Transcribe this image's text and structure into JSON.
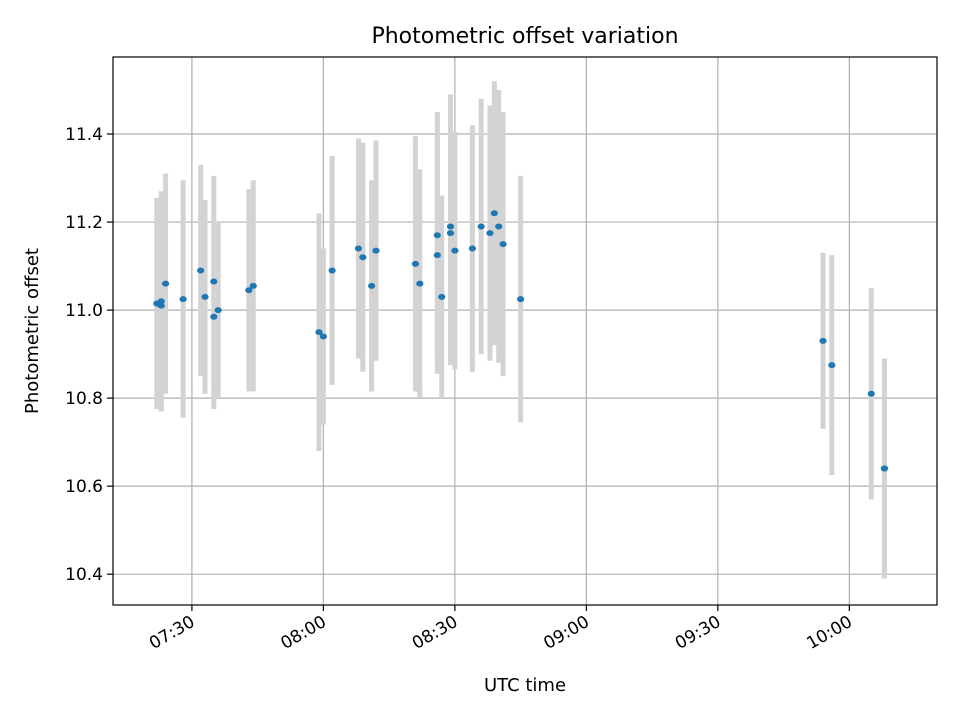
{
  "chart_data": {
    "type": "scatter",
    "title": "Photometric offset variation",
    "xlabel": "UTC time",
    "ylabel": "Photometric offset",
    "xlim": [
      "07:12",
      "10:20"
    ],
    "ylim": [
      10.33,
      11.575
    ],
    "xticks": [
      "07:30",
      "08:00",
      "08:30",
      "09:00",
      "09:30",
      "10:00"
    ],
    "yticks": [
      "10.4",
      "10.6",
      "10.8",
      "11.0",
      "11.2",
      "11.4"
    ],
    "grid": true,
    "colors": {
      "marker": "#1f77b4",
      "errorbar": "#d3d3d3",
      "grid": "#b0b0b0"
    },
    "points": [
      {
        "x": "07:22",
        "y": 11.015,
        "err": 0.24
      },
      {
        "x": "07:23",
        "y": 11.02,
        "err": 0.25
      },
      {
        "x": "07:23",
        "y": 11.01,
        "err": 0.24
      },
      {
        "x": "07:24",
        "y": 11.06,
        "err": 0.25
      },
      {
        "x": "07:28",
        "y": 11.025,
        "err": 0.27
      },
      {
        "x": "07:32",
        "y": 11.09,
        "err": 0.24
      },
      {
        "x": "07:33",
        "y": 11.03,
        "err": 0.22
      },
      {
        "x": "07:35",
        "y": 11.065,
        "err": 0.24
      },
      {
        "x": "07:35",
        "y": 10.985,
        "err": 0.21
      },
      {
        "x": "07:36",
        "y": 11.0,
        "err": 0.2
      },
      {
        "x": "07:43",
        "y": 11.045,
        "err": 0.23
      },
      {
        "x": "07:44",
        "y": 11.055,
        "err": 0.24
      },
      {
        "x": "07:59",
        "y": 10.95,
        "err": 0.27
      },
      {
        "x": "08:00",
        "y": 10.94,
        "err": 0.2
      },
      {
        "x": "08:02",
        "y": 11.09,
        "err": 0.26
      },
      {
        "x": "08:08",
        "y": 11.14,
        "err": 0.25
      },
      {
        "x": "08:09",
        "y": 11.12,
        "err": 0.26
      },
      {
        "x": "08:11",
        "y": 11.055,
        "err": 0.24
      },
      {
        "x": "08:12",
        "y": 11.135,
        "err": 0.25
      },
      {
        "x": "08:21",
        "y": 11.105,
        "err": 0.29
      },
      {
        "x": "08:22",
        "y": 11.06,
        "err": 0.26
      },
      {
        "x": "08:26",
        "y": 11.17,
        "err": 0.28
      },
      {
        "x": "08:26",
        "y": 11.125,
        "err": 0.27
      },
      {
        "x": "08:27",
        "y": 11.03,
        "err": 0.23
      },
      {
        "x": "08:29",
        "y": 11.175,
        "err": 0.3
      },
      {
        "x": "08:29",
        "y": 11.19,
        "err": 0.3
      },
      {
        "x": "08:30",
        "y": 11.135,
        "err": 0.27
      },
      {
        "x": "08:34",
        "y": 11.14,
        "err": 0.28
      },
      {
        "x": "08:36",
        "y": 11.19,
        "err": 0.29
      },
      {
        "x": "08:38",
        "y": 11.175,
        "err": 0.29
      },
      {
        "x": "08:39",
        "y": 11.22,
        "err": 0.3
      },
      {
        "x": "08:40",
        "y": 11.19,
        "err": 0.31
      },
      {
        "x": "08:41",
        "y": 11.15,
        "err": 0.3
      },
      {
        "x": "08:45",
        "y": 11.025,
        "err": 0.28
      },
      {
        "x": "09:54",
        "y": 10.93,
        "err": 0.2
      },
      {
        "x": "09:56",
        "y": 10.875,
        "err": 0.25
      },
      {
        "x": "10:05",
        "y": 10.81,
        "err": 0.24
      },
      {
        "x": "10:08",
        "y": 10.64,
        "err": 0.23
      },
      {
        "x": "10:08",
        "y": 10.64,
        "err": 0.25
      }
    ]
  }
}
